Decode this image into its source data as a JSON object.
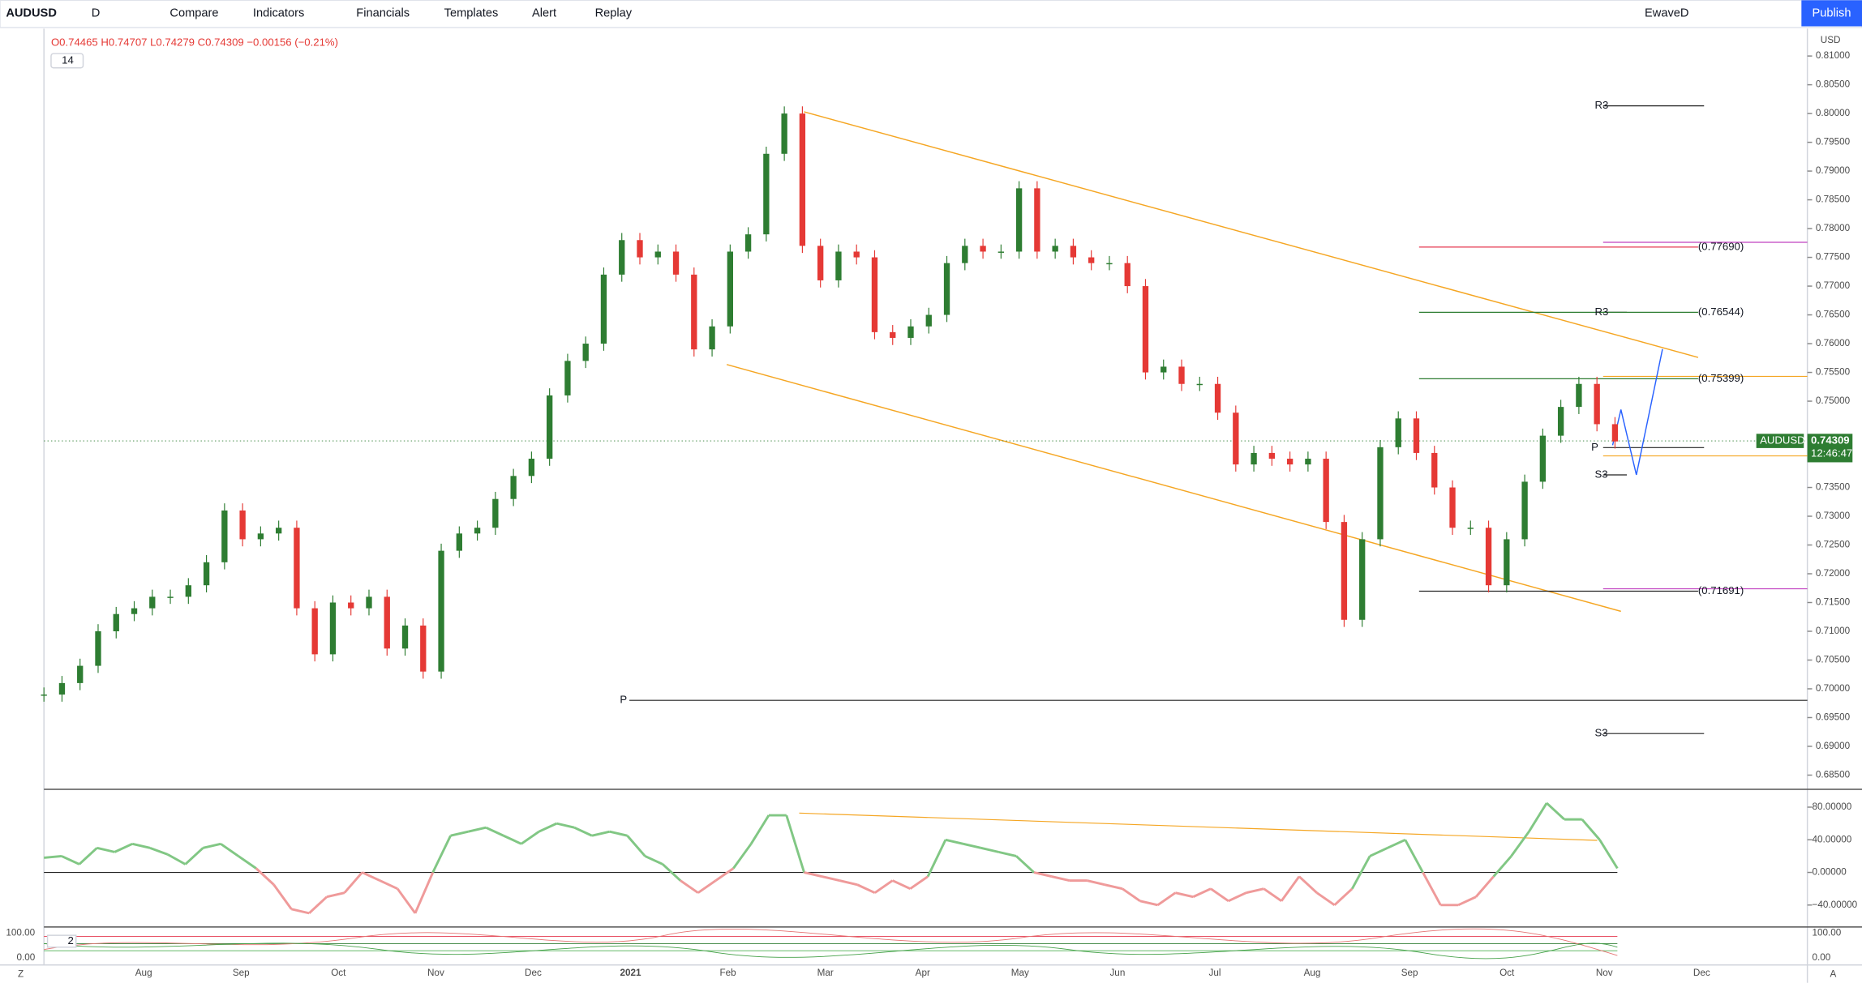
{
  "toolbar": {
    "symbol": "AUDUSD",
    "interval": "D",
    "items": [
      "Compare",
      "Indicators",
      "Financials",
      "Templates",
      "Alert",
      "Replay"
    ],
    "layout": "EwaveD",
    "publish": "Publish"
  },
  "legend": {
    "ohlc": "O0.74465 H0.74707 L0.74279 C0.74309 −0.00156 (−0.21%)",
    "indicator": "14"
  },
  "price_axis": {
    "currency": "USD",
    "ticks": [
      "0.81000",
      "0.80500",
      "0.80000",
      "0.79500",
      "0.79000",
      "0.78500",
      "0.78000",
      "0.77500",
      "0.77000",
      "0.76500",
      "0.76000",
      "0.75500",
      "0.75000",
      "0.73500",
      "0.73000",
      "0.72500",
      "0.72000",
      "0.71500",
      "0.71000",
      "0.70500",
      "0.70000",
      "0.69500",
      "0.69000",
      "0.68500"
    ]
  },
  "last_price": {
    "symbol": "AUDUSD",
    "price": "0.74309",
    "countdown": "12:46:47"
  },
  "time_axis": {
    "months": [
      "Aug",
      "Sep",
      "Oct",
      "Nov",
      "Dec",
      "2021",
      "Feb",
      "Mar",
      "Apr",
      "May",
      "Jun",
      "Jul",
      "Aug",
      "Sep",
      "Oct",
      "Nov",
      "Dec"
    ]
  },
  "levels": [
    "R3",
    "R3",
    "P",
    "S3",
    "P",
    "S3",
    "(0.77690)",
    "(0.76544)",
    "(0.75399)",
    "(0.71691)"
  ],
  "price_series": {
    "closes": [
      0.699,
      0.701,
      0.704,
      0.71,
      0.713,
      0.714,
      0.716,
      0.716,
      0.718,
      0.722,
      0.731,
      0.726,
      0.727,
      0.728,
      0.714,
      0.706,
      0.715,
      0.714,
      0.716,
      0.707,
      0.711,
      0.703,
      0.724,
      0.727,
      0.728,
      0.733,
      0.737,
      0.74,
      0.751,
      0.757,
      0.76,
      0.772,
      0.778,
      0.775,
      0.776,
      0.772,
      0.759,
      0.763,
      0.776,
      0.779,
      0.793,
      0.8,
      0.777,
      0.771,
      0.776,
      0.775,
      0.762,
      0.761,
      0.763,
      0.765,
      0.774,
      0.777,
      0.776,
      0.776,
      0.787,
      0.776,
      0.777,
      0.775,
      0.774,
      0.774,
      0.77,
      0.755,
      0.756,
      0.753,
      0.753,
      0.748,
      0.739,
      0.741,
      0.74,
      0.739,
      0.74,
      0.729,
      0.712,
      0.726,
      0.742,
      0.747,
      0.741,
      0.735,
      0.728,
      0.728,
      0.718,
      0.726,
      0.736,
      0.744,
      0.749,
      0.753,
      0.746,
      0.743
    ]
  },
  "oscillator": {
    "ticks": [
      "80.00000",
      "40.00000",
      "0.00000",
      "−40.00000"
    ],
    "values": [
      18,
      20,
      10,
      30,
      25,
      35,
      30,
      22,
      10,
      30,
      35,
      20,
      5,
      -15,
      -45,
      -50,
      -30,
      -25,
      0,
      -10,
      -20,
      -50,
      0,
      45,
      50,
      55,
      45,
      35,
      50,
      60,
      55,
      45,
      50,
      45,
      20,
      10,
      -10,
      -25,
      -10,
      5,
      35,
      70,
      70,
      0,
      -5,
      -10,
      -15,
      -25,
      -10,
      -20,
      -5,
      40,
      35,
      30,
      25,
      20,
      0,
      -5,
      -10,
      -10,
      -15,
      -20,
      -35,
      -40,
      -25,
      -30,
      -20,
      -35,
      -25,
      -20,
      -35,
      -5,
      -25,
      -40,
      -20,
      20,
      30,
      40,
      0,
      -40,
      -40,
      -30,
      -5,
      20,
      50,
      85,
      65,
      65,
      40,
      5
    ]
  },
  "lower_pane": {
    "ticks": [
      "100.00",
      "0.00"
    ],
    "label": "2"
  },
  "corners": [
    "Z",
    "A"
  ]
}
